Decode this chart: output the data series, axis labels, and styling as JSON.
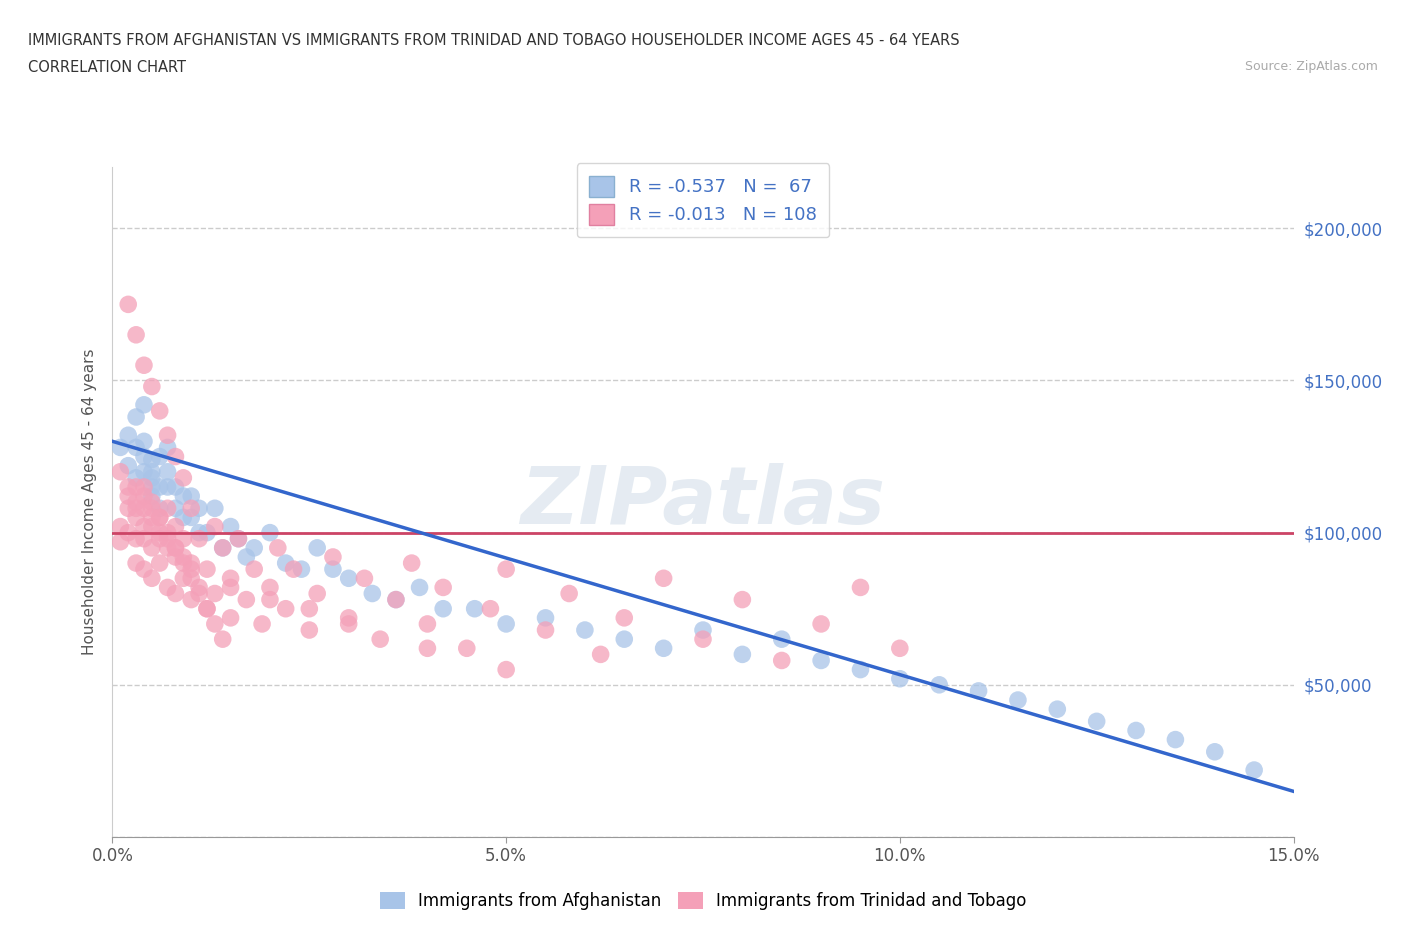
{
  "title_line1": "IMMIGRANTS FROM AFGHANISTAN VS IMMIGRANTS FROM TRINIDAD AND TOBAGO HOUSEHOLDER INCOME AGES 45 - 64 YEARS",
  "title_line2": "CORRELATION CHART",
  "source_text": "Source: ZipAtlas.com",
  "ylabel": "Householder Income Ages 45 - 64 years",
  "xlim": [
    0.0,
    0.15
  ],
  "ylim": [
    0,
    220000
  ],
  "yticks": [
    0,
    50000,
    100000,
    150000,
    200000
  ],
  "ytick_labels_right": [
    "",
    "$50,000",
    "$100,000",
    "$150,000",
    "$200,000"
  ],
  "xticks": [
    0.0,
    0.05,
    0.1,
    0.15
  ],
  "xtick_labels": [
    "0.0%",
    "5.0%",
    "10.0%",
    "15.0%"
  ],
  "R_afghanistan": -0.537,
  "N_afghanistan": 67,
  "R_trinidad": -0.013,
  "N_trinidad": 108,
  "afghanistan_color": "#a8c4e8",
  "trinidad_color": "#f4a0b8",
  "line_afghanistan_color": "#3366cc",
  "line_trinidad_color": "#cc4466",
  "watermark": "ZIPatlas",
  "afghanistan_x": [
    0.001,
    0.002,
    0.002,
    0.003,
    0.003,
    0.003,
    0.004,
    0.004,
    0.004,
    0.004,
    0.005,
    0.005,
    0.005,
    0.005,
    0.005,
    0.006,
    0.006,
    0.006,
    0.007,
    0.007,
    0.007,
    0.008,
    0.008,
    0.009,
    0.009,
    0.01,
    0.01,
    0.011,
    0.011,
    0.012,
    0.013,
    0.014,
    0.015,
    0.016,
    0.017,
    0.018,
    0.02,
    0.022,
    0.024,
    0.026,
    0.028,
    0.03,
    0.033,
    0.036,
    0.039,
    0.042,
    0.046,
    0.05,
    0.055,
    0.06,
    0.065,
    0.07,
    0.075,
    0.08,
    0.085,
    0.09,
    0.095,
    0.1,
    0.105,
    0.11,
    0.115,
    0.12,
    0.125,
    0.13,
    0.135,
    0.14,
    0.145
  ],
  "afghanistan_y": [
    128000,
    132000,
    122000,
    118000,
    128000,
    138000,
    120000,
    125000,
    130000,
    142000,
    115000,
    118000,
    124000,
    112000,
    120000,
    115000,
    125000,
    108000,
    115000,
    120000,
    128000,
    108000,
    115000,
    112000,
    105000,
    105000,
    112000,
    100000,
    108000,
    100000,
    108000,
    95000,
    102000,
    98000,
    92000,
    95000,
    100000,
    90000,
    88000,
    95000,
    88000,
    85000,
    80000,
    78000,
    82000,
    75000,
    75000,
    70000,
    72000,
    68000,
    65000,
    62000,
    68000,
    60000,
    65000,
    58000,
    55000,
    52000,
    50000,
    48000,
    45000,
    42000,
    38000,
    35000,
    32000,
    28000,
    22000
  ],
  "trinidad_x": [
    0.001,
    0.001,
    0.002,
    0.002,
    0.002,
    0.003,
    0.003,
    0.003,
    0.003,
    0.004,
    0.004,
    0.004,
    0.004,
    0.005,
    0.005,
    0.005,
    0.005,
    0.006,
    0.006,
    0.006,
    0.007,
    0.007,
    0.007,
    0.008,
    0.008,
    0.008,
    0.009,
    0.009,
    0.01,
    0.01,
    0.01,
    0.011,
    0.011,
    0.012,
    0.012,
    0.013,
    0.013,
    0.014,
    0.015,
    0.015,
    0.016,
    0.017,
    0.018,
    0.019,
    0.02,
    0.021,
    0.022,
    0.023,
    0.025,
    0.026,
    0.028,
    0.03,
    0.032,
    0.034,
    0.036,
    0.038,
    0.04,
    0.042,
    0.045,
    0.048,
    0.05,
    0.055,
    0.058,
    0.062,
    0.065,
    0.07,
    0.075,
    0.08,
    0.085,
    0.09,
    0.095,
    0.1,
    0.002,
    0.003,
    0.004,
    0.005,
    0.006,
    0.007,
    0.008,
    0.009,
    0.003,
    0.004,
    0.005,
    0.006,
    0.007,
    0.008,
    0.009,
    0.01,
    0.011,
    0.012,
    0.013,
    0.014,
    0.001,
    0.002,
    0.003,
    0.004,
    0.005,
    0.006,
    0.007,
    0.008,
    0.009,
    0.01,
    0.015,
    0.02,
    0.025,
    0.03,
    0.04,
    0.05
  ],
  "trinidad_y": [
    102000,
    97000,
    108000,
    100000,
    112000,
    98000,
    105000,
    115000,
    90000,
    102000,
    98000,
    112000,
    88000,
    102000,
    95000,
    108000,
    85000,
    98000,
    90000,
    105000,
    82000,
    95000,
    108000,
    80000,
    92000,
    102000,
    85000,
    98000,
    78000,
    90000,
    108000,
    82000,
    98000,
    75000,
    88000,
    102000,
    80000,
    95000,
    72000,
    85000,
    98000,
    78000,
    88000,
    70000,
    82000,
    95000,
    75000,
    88000,
    68000,
    80000,
    92000,
    72000,
    85000,
    65000,
    78000,
    90000,
    70000,
    82000,
    62000,
    75000,
    88000,
    68000,
    80000,
    60000,
    72000,
    85000,
    65000,
    78000,
    58000,
    70000,
    82000,
    62000,
    175000,
    165000,
    155000,
    148000,
    140000,
    132000,
    125000,
    118000,
    108000,
    115000,
    110000,
    105000,
    100000,
    95000,
    90000,
    85000,
    80000,
    75000,
    70000,
    65000,
    120000,
    115000,
    110000,
    108000,
    105000,
    100000,
    98000,
    95000,
    92000,
    88000,
    82000,
    78000,
    75000,
    70000,
    62000,
    55000
  ],
  "legend_labels": [
    "Immigrants from Afghanistan",
    "Immigrants from Trinidad and Tobago"
  ]
}
